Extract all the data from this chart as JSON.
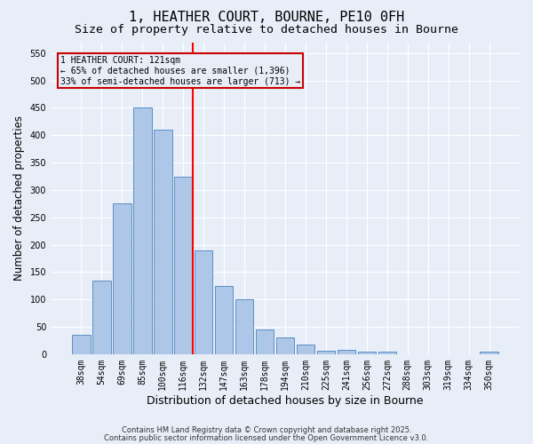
{
  "title": "1, HEATHER COURT, BOURNE, PE10 0FH",
  "subtitle": "Size of property relative to detached houses in Bourne",
  "xlabel": "Distribution of detached houses by size in Bourne",
  "ylabel": "Number of detached properties",
  "categories": [
    "38sqm",
    "54sqm",
    "69sqm",
    "85sqm",
    "100sqm",
    "116sqm",
    "132sqm",
    "147sqm",
    "163sqm",
    "178sqm",
    "194sqm",
    "210sqm",
    "225sqm",
    "241sqm",
    "256sqm",
    "272sqm",
    "288sqm",
    "303sqm",
    "319sqm",
    "334sqm",
    "350sqm"
  ],
  "values": [
    35,
    135,
    275,
    450,
    410,
    325,
    190,
    125,
    100,
    45,
    30,
    18,
    7,
    8,
    4,
    4,
    0,
    0,
    0,
    0,
    5
  ],
  "bar_color": "#aec6e8",
  "bar_edge_color": "#5a8fc2",
  "red_line_after_index": 5,
  "annotation_lines": [
    "1 HEATHER COURT: 121sqm",
    "← 65% of detached houses are smaller (1,396)",
    "33% of semi-detached houses are larger (713) →"
  ],
  "annotation_box_edgecolor": "#cc0000",
  "ylim": [
    0,
    570
  ],
  "yticks": [
    0,
    50,
    100,
    150,
    200,
    250,
    300,
    350,
    400,
    450,
    500,
    550
  ],
  "background_color": "#e8eef8",
  "grid_color": "#ffffff",
  "footer_line1": "Contains HM Land Registry data © Crown copyright and database right 2025.",
  "footer_line2": "Contains public sector information licensed under the Open Government Licence v3.0.",
  "title_fontsize": 11,
  "subtitle_fontsize": 9.5,
  "xlabel_fontsize": 9,
  "ylabel_fontsize": 8.5,
  "annotation_fontsize": 7,
  "footer_fontsize": 6,
  "tick_fontsize": 7
}
